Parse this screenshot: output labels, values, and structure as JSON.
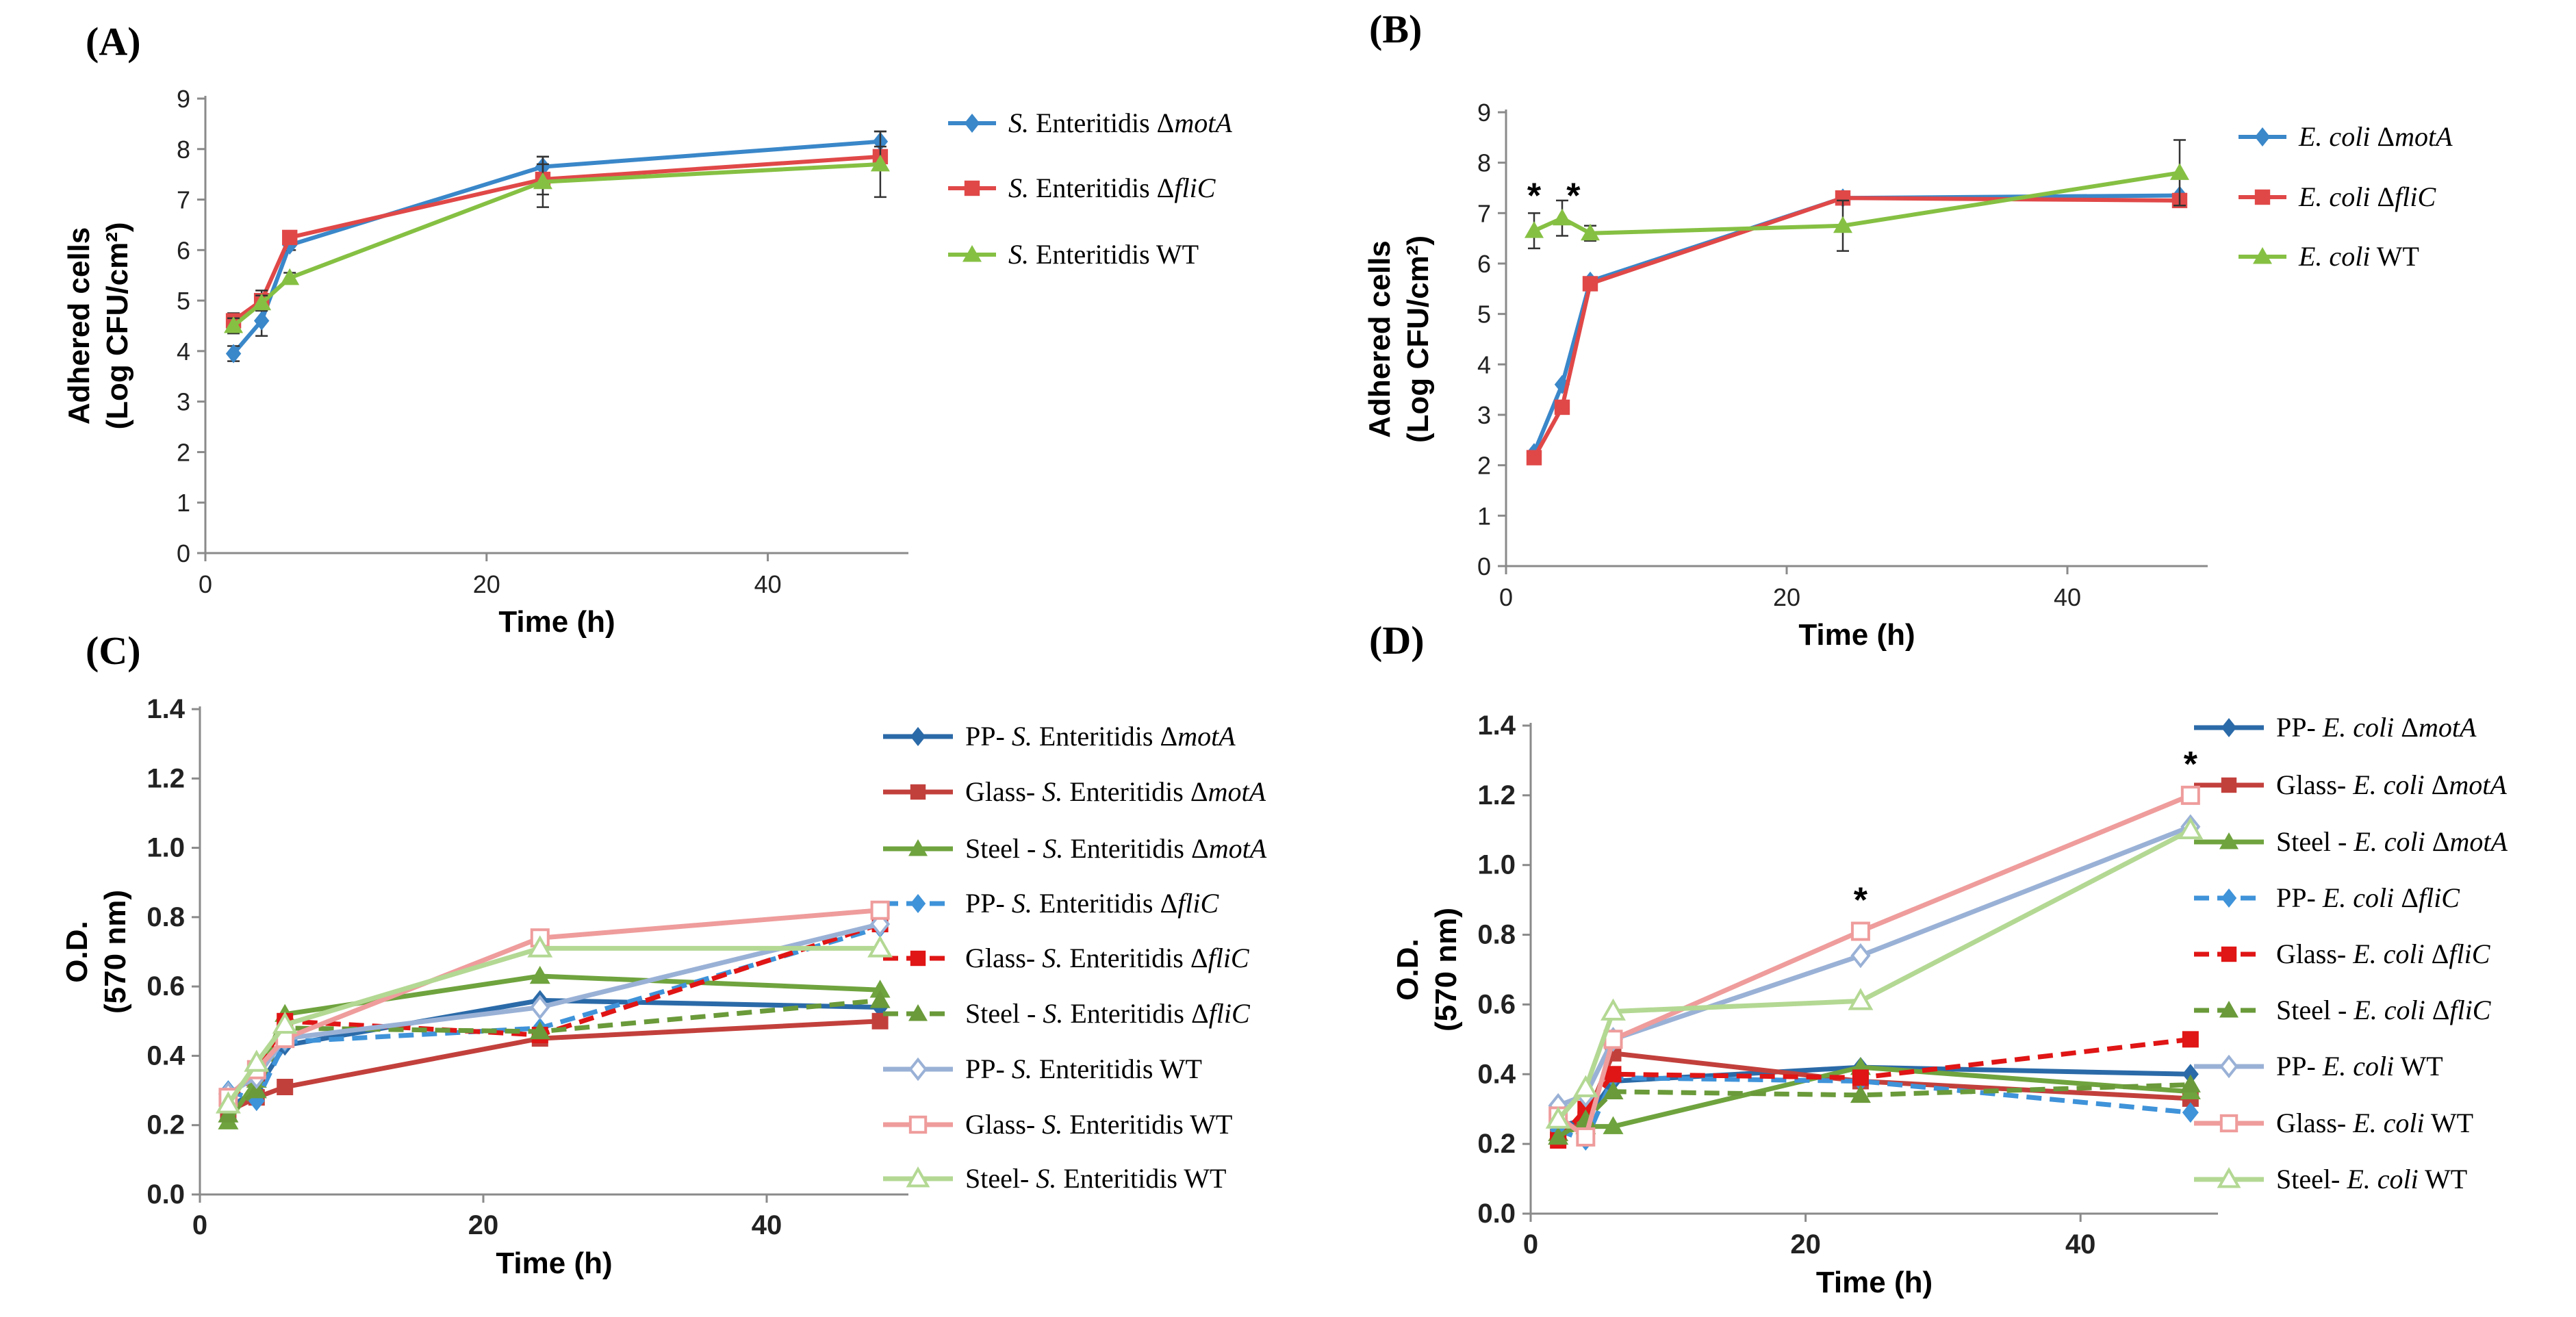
{
  "colors": {
    "blue": "#3a87c9",
    "red": "#e04848",
    "green": "#86c043",
    "dblue": "#2b6aa8",
    "dred": "#c2403c",
    "dgreen": "#6fa33e",
    "lblue": "#3f93d9",
    "lred": "#e01515",
    "lgreen": "#6a9a3a",
    "pblue": "#9ab1d6",
    "pred": "#ef9c9c",
    "pgreen": "#b3d893"
  },
  "chart_data": [
    {
      "id": "A",
      "panel_label": "(A)",
      "type": "line",
      "xlabel": "Time (h)",
      "ylabel_line1": "Adhered cells",
      "ylabel_line2": "(Log CFU/cm²)",
      "xlim": [
        0,
        50
      ],
      "ylim": [
        0,
        9
      ],
      "xticks": [
        0,
        20,
        40
      ],
      "yticks": [
        0,
        1,
        2,
        3,
        4,
        5,
        6,
        7,
        8,
        9
      ],
      "ytick_decimals": 0,
      "series": [
        {
          "label_italic": "S.",
          "label_plain": " Enteritidis Δ",
          "label_italic2": "motA",
          "color": "blue",
          "marker": "diamond",
          "style": "solid",
          "width": 6,
          "x": [
            2,
            4,
            6,
            24,
            48
          ],
          "y": [
            3.95,
            4.6,
            6.1,
            7.65,
            8.15
          ],
          "err": [
            0.15,
            0.3,
            0.1,
            0.2,
            0.2
          ]
        },
        {
          "label_italic": "S.",
          "label_plain": " Enteritidis Δ",
          "label_italic2": "fliC",
          "color": "red",
          "marker": "square",
          "style": "solid",
          "width": 6,
          "x": [
            2,
            4,
            6,
            24,
            48
          ],
          "y": [
            4.6,
            5.0,
            6.25,
            7.4,
            7.85
          ],
          "err": [
            0.15,
            0.2,
            0.1,
            0.3,
            0.2
          ]
        },
        {
          "label_italic": "S.",
          "label_plain": " Enteritidis WT",
          "label_italic2": "",
          "color": "green",
          "marker": "triangle",
          "style": "solid",
          "width": 6,
          "x": [
            2,
            4,
            6,
            24,
            48
          ],
          "y": [
            4.5,
            4.95,
            5.45,
            7.35,
            7.7
          ],
          "err": [
            0.15,
            0.15,
            0.1,
            0.5,
            0.65
          ]
        }
      ],
      "annotations": []
    },
    {
      "id": "B",
      "panel_label": "(B)",
      "type": "line",
      "xlabel": "Time (h)",
      "ylabel_line1": "Adhered cells",
      "ylabel_line2": "(Log CFU/cm²)",
      "xlim": [
        0,
        50
      ],
      "ylim": [
        0,
        9
      ],
      "xticks": [
        0,
        20,
        40
      ],
      "yticks": [
        0,
        1,
        2,
        3,
        4,
        5,
        6,
        7,
        8,
        9
      ],
      "ytick_decimals": 0,
      "series": [
        {
          "label_italic": "E. coli",
          "label_plain": " Δ",
          "label_italic2": "motA",
          "color": "blue",
          "marker": "diamond",
          "style": "solid",
          "width": 6,
          "x": [
            2,
            4,
            6,
            24,
            48
          ],
          "y": [
            2.25,
            3.6,
            5.65,
            7.3,
            7.35
          ],
          "err": [
            0,
            0,
            0,
            0,
            0
          ]
        },
        {
          "label_italic": "E. coli",
          "label_plain": " Δ",
          "label_italic2": "fliC",
          "color": "red",
          "marker": "square",
          "style": "solid",
          "width": 6,
          "x": [
            2,
            4,
            6,
            24,
            48
          ],
          "y": [
            2.15,
            3.15,
            5.6,
            7.3,
            7.25
          ],
          "err": [
            0.1,
            0.1,
            0.1,
            0.1,
            0.1
          ]
        },
        {
          "label_italic": "E. coli",
          "label_plain": " WT",
          "label_italic2": "",
          "color": "green",
          "marker": "triangle",
          "style": "solid",
          "width": 6,
          "x": [
            2,
            4,
            6,
            24,
            48
          ],
          "y": [
            6.65,
            6.9,
            6.6,
            6.75,
            7.8
          ],
          "err": [
            0.35,
            0.35,
            0.15,
            0.5,
            0.65
          ]
        }
      ],
      "annotations": [
        {
          "text": "*",
          "x": 2,
          "y": 7.35
        },
        {
          "text": "*",
          "x": 4.8,
          "y": 7.35
        }
      ]
    },
    {
      "id": "C",
      "panel_label": "(C)",
      "type": "line",
      "xlabel": "Time (h)",
      "ylabel_line1": "O.D.",
      "ylabel_line2": "(570 nm)",
      "xlim": [
        0,
        50
      ],
      "ylim": [
        0,
        1.4
      ],
      "xticks": [
        0,
        20,
        40
      ],
      "yticks": [
        0.0,
        0.2,
        0.4,
        0.6,
        0.8,
        1.0,
        1.2,
        1.4
      ],
      "ytick_decimals": 1,
      "series": [
        {
          "label_prefix": "PP- ",
          "label_italic": "S.",
          "label_plain": " Enteritidis Δ",
          "label_italic2": "motA",
          "color": "dblue",
          "marker": "diamond",
          "style": "solid",
          "width": 7,
          "x": [
            2,
            4,
            6,
            24,
            48
          ],
          "y": [
            0.25,
            0.3,
            0.43,
            0.56,
            0.54
          ]
        },
        {
          "label_prefix": "Glass- ",
          "label_italic": "S.",
          "label_plain": " Enteritidis Δ",
          "label_italic2": "motA",
          "color": "dred",
          "marker": "square",
          "style": "solid",
          "width": 7,
          "x": [
            2,
            4,
            6,
            24,
            48
          ],
          "y": [
            0.24,
            0.28,
            0.31,
            0.45,
            0.5
          ]
        },
        {
          "label_prefix": "Steel - ",
          "label_italic": "S.",
          "label_plain": " Enteritidis Δ",
          "label_italic2": "motA",
          "color": "dgreen",
          "marker": "triangle",
          "style": "solid",
          "width": 7,
          "x": [
            2,
            4,
            6,
            24,
            48
          ],
          "y": [
            0.21,
            0.33,
            0.52,
            0.63,
            0.59
          ]
        },
        {
          "label_prefix": "PP- ",
          "label_italic": "S.",
          "label_plain": " Enteritidis Δ",
          "label_italic2": "fliC",
          "color": "lblue",
          "marker": "diamond",
          "style": "dashed",
          "width": 7,
          "x": [
            2,
            4,
            6,
            24,
            48
          ],
          "y": [
            0.3,
            0.27,
            0.44,
            0.48,
            0.77
          ]
        },
        {
          "label_prefix": "Glass- ",
          "label_italic": "S.",
          "label_plain": " Enteritidis Δ",
          "label_italic2": "fliC",
          "color": "lred",
          "marker": "square",
          "style": "dashed",
          "width": 7,
          "x": [
            2,
            4,
            6,
            24,
            48
          ],
          "y": [
            0.27,
            0.35,
            0.5,
            0.46,
            0.78
          ]
        },
        {
          "label_prefix": "Steel - ",
          "label_italic": "S.",
          "label_plain": " Enteritidis Δ",
          "label_italic2": "fliC",
          "color": "lgreen",
          "marker": "triangle",
          "style": "dashed",
          "width": 7,
          "x": [
            2,
            4,
            6,
            24,
            48
          ],
          "y": [
            0.23,
            0.3,
            0.48,
            0.47,
            0.56
          ]
        },
        {
          "label_prefix": "PP- ",
          "label_italic": "S.",
          "label_plain": " Enteritidis WT",
          "label_italic2": "",
          "color": "pblue",
          "marker": "diamond-open",
          "style": "solid",
          "width": 7,
          "x": [
            2,
            4,
            6,
            24,
            48
          ],
          "y": [
            0.29,
            0.34,
            0.45,
            0.54,
            0.78
          ]
        },
        {
          "label_prefix": "Glass- ",
          "label_italic": "S.",
          "label_plain": " Enteritidis WT",
          "label_italic2": "",
          "color": "pred",
          "marker": "square-open",
          "style": "solid",
          "width": 7,
          "x": [
            2,
            4,
            6,
            24,
            48
          ],
          "y": [
            0.28,
            0.36,
            0.45,
            0.74,
            0.82
          ]
        },
        {
          "label_prefix": "Steel- ",
          "label_italic": "S.",
          "label_plain": " Enteritidis WT",
          "label_italic2": "",
          "color": "pgreen",
          "marker": "triangle-open",
          "style": "solid",
          "width": 7,
          "x": [
            2,
            4,
            6,
            24,
            48
          ],
          "y": [
            0.26,
            0.38,
            0.49,
            0.71,
            0.71
          ]
        }
      ],
      "annotations": []
    },
    {
      "id": "D",
      "panel_label": "(D)",
      "type": "line",
      "xlabel": "Time (h)",
      "ylabel_line1": "O.D.",
      "ylabel_line2": "(570 nm)",
      "xlim": [
        0,
        50
      ],
      "ylim": [
        0,
        1.4
      ],
      "xticks": [
        0,
        20,
        40
      ],
      "yticks": [
        0.0,
        0.2,
        0.4,
        0.6,
        0.8,
        1.0,
        1.2,
        1.4
      ],
      "ytick_decimals": 1,
      "series": [
        {
          "label_prefix": "PP- ",
          "label_italic": "E. coli",
          "label_plain": " Δ",
          "label_italic2": "motA",
          "color": "dblue",
          "marker": "diamond",
          "style": "solid",
          "width": 7,
          "x": [
            2,
            4,
            6,
            24,
            48
          ],
          "y": [
            0.25,
            0.27,
            0.38,
            0.42,
            0.4
          ]
        },
        {
          "label_prefix": "Glass- ",
          "label_italic": "E. coli",
          "label_plain": " Δ",
          "label_italic2": "motA",
          "color": "dred",
          "marker": "square",
          "style": "solid",
          "width": 7,
          "x": [
            2,
            4,
            6,
            24,
            48
          ],
          "y": [
            0.22,
            0.27,
            0.46,
            0.38,
            0.33
          ]
        },
        {
          "label_prefix": "Steel - ",
          "label_italic": "E. coli",
          "label_plain": " Δ",
          "label_italic2": "motA",
          "color": "dgreen",
          "marker": "triangle",
          "style": "solid",
          "width": 7,
          "x": [
            2,
            4,
            6,
            24,
            48
          ],
          "y": [
            0.23,
            0.25,
            0.25,
            0.42,
            0.35
          ]
        },
        {
          "label_prefix": "PP- ",
          "label_italic": "E. coli",
          "label_plain": " Δ",
          "label_italic2": "fliC",
          "color": "lblue",
          "marker": "diamond",
          "style": "dashed",
          "width": 7,
          "x": [
            2,
            4,
            6,
            24,
            48
          ],
          "y": [
            0.24,
            0.21,
            0.39,
            0.38,
            0.29
          ]
        },
        {
          "label_prefix": "Glass- ",
          "label_italic": "E. coli",
          "label_plain": " Δ",
          "label_italic2": "fliC",
          "color": "lred",
          "marker": "square",
          "style": "dashed",
          "width": 7,
          "x": [
            2,
            4,
            6,
            24,
            48
          ],
          "y": [
            0.21,
            0.3,
            0.4,
            0.39,
            0.5
          ]
        },
        {
          "label_prefix": "Steel - ",
          "label_italic": "E. coli",
          "label_plain": " Δ",
          "label_italic2": "fliC",
          "color": "lgreen",
          "marker": "triangle",
          "style": "dashed",
          "width": 7,
          "x": [
            2,
            4,
            6,
            24,
            48
          ],
          "y": [
            0.22,
            0.27,
            0.35,
            0.34,
            0.37
          ]
        },
        {
          "label_prefix": "PP- ",
          "label_italic": "E. coli",
          "label_plain": " WT",
          "label_italic2": "",
          "color": "pblue",
          "marker": "diamond-open",
          "style": "solid",
          "width": 7,
          "x": [
            2,
            4,
            6,
            24,
            48
          ],
          "y": [
            0.31,
            0.34,
            0.5,
            0.74,
            1.11
          ]
        },
        {
          "label_prefix": "Glass- ",
          "label_italic": "E. coli",
          "label_plain": " WT",
          "label_italic2": "",
          "color": "pred",
          "marker": "square-open",
          "style": "solid",
          "width": 7,
          "x": [
            2,
            4,
            6,
            24,
            48
          ],
          "y": [
            0.28,
            0.22,
            0.5,
            0.81,
            1.2
          ]
        },
        {
          "label_prefix": "Steel- ",
          "label_italic": "E. coli",
          "label_plain": " WT",
          "label_italic2": "",
          "color": "pgreen",
          "marker": "triangle-open",
          "style": "solid",
          "width": 7,
          "x": [
            2,
            4,
            6,
            24,
            48
          ],
          "y": [
            0.27,
            0.36,
            0.58,
            0.61,
            1.1
          ]
        }
      ],
      "annotations": [
        {
          "text": "*",
          "x": 24,
          "y": 0.9
        },
        {
          "text": "*",
          "x": 48,
          "y": 1.29
        }
      ]
    }
  ]
}
